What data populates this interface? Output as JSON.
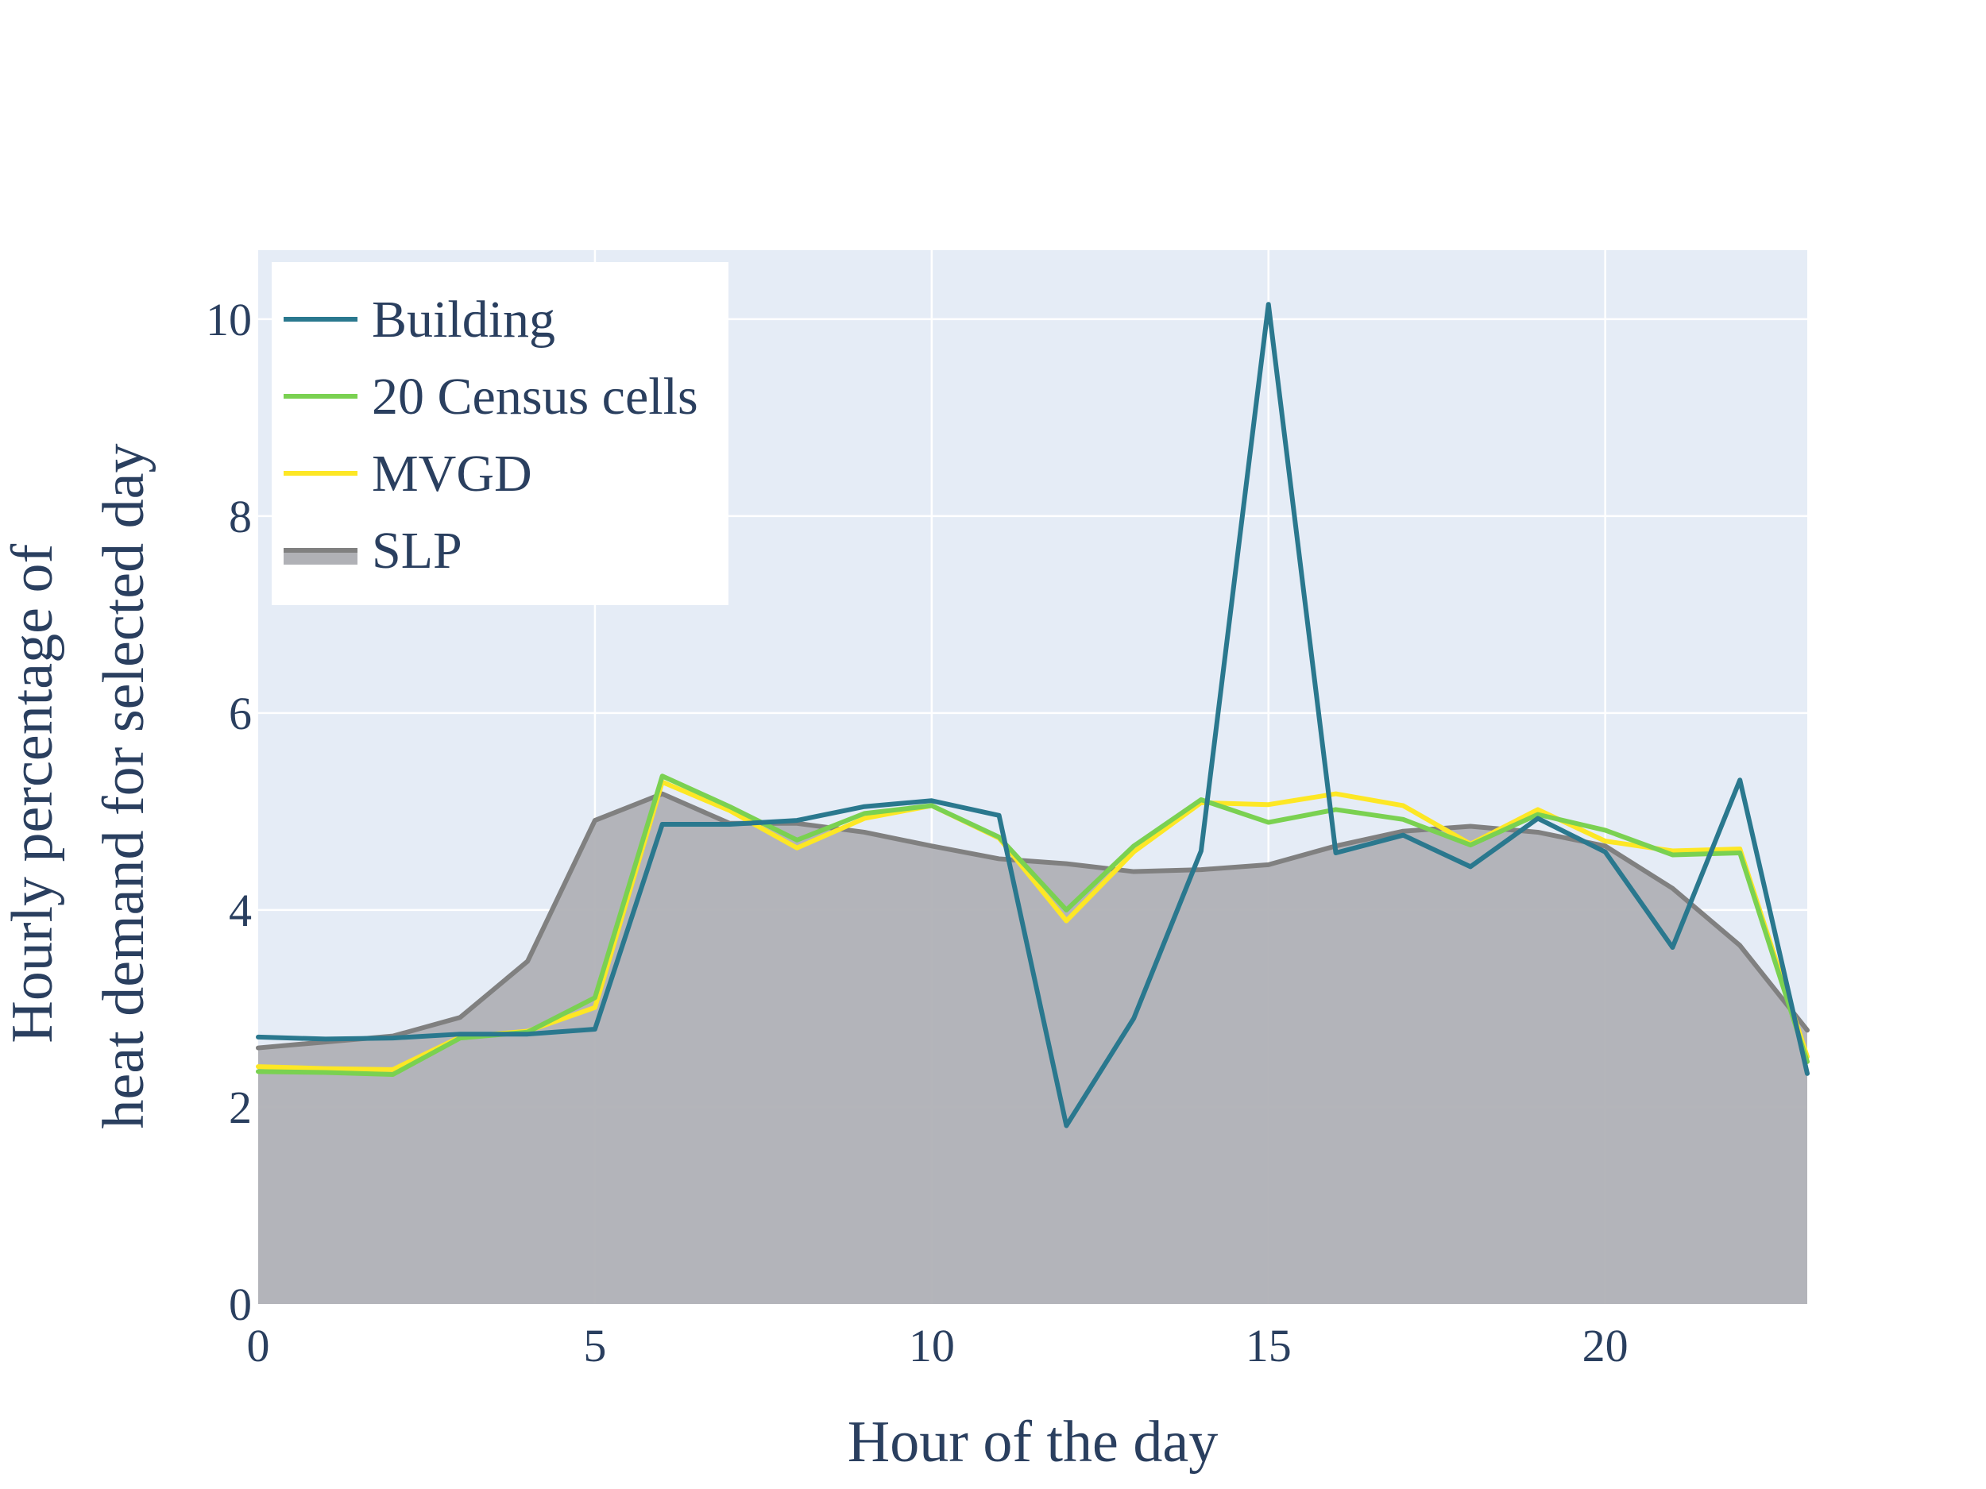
{
  "chart_data": {
    "type": "line",
    "xlabel": "Hour of the day",
    "ylabel_lines": [
      "Hourly percentage of",
      "heat demand for selected day"
    ],
    "xlim": [
      0,
      23
    ],
    "ylim": [
      0,
      10.7
    ],
    "x_ticks": [
      0,
      5,
      10,
      15,
      20
    ],
    "y_ticks": [
      0,
      2,
      4,
      6,
      8,
      10
    ],
    "grid": true,
    "legend_position": "top-left",
    "plot_background": "#e5ecf6",
    "x": [
      0,
      1,
      2,
      3,
      4,
      5,
      6,
      7,
      8,
      9,
      10,
      11,
      12,
      13,
      14,
      15,
      16,
      17,
      18,
      19,
      20,
      21,
      22,
      23
    ],
    "series": [
      {
        "name": "Building",
        "color": "#2a788e",
        "style": "line",
        "values": [
          2.71,
          2.69,
          2.7,
          2.74,
          2.74,
          2.79,
          4.87,
          4.87,
          4.91,
          5.05,
          5.11,
          4.96,
          1.81,
          2.9,
          4.6,
          10.15,
          4.58,
          4.76,
          4.44,
          4.93,
          4.59,
          3.62,
          5.32,
          2.34
        ]
      },
      {
        "name": "20 Census cells",
        "color": "#7ad151",
        "style": "line",
        "values": [
          2.36,
          2.35,
          2.33,
          2.7,
          2.76,
          3.11,
          5.36,
          5.05,
          4.71,
          4.98,
          5.06,
          4.74,
          4.0,
          4.65,
          5.12,
          4.89,
          5.02,
          4.92,
          4.66,
          4.97,
          4.81,
          4.56,
          4.58,
          2.46
        ]
      },
      {
        "name": "MVGD",
        "color": "#fde725",
        "style": "line",
        "values": [
          2.41,
          2.39,
          2.38,
          2.71,
          2.77,
          3.01,
          5.3,
          5.01,
          4.63,
          4.93,
          5.06,
          4.73,
          3.89,
          4.59,
          5.09,
          5.07,
          5.18,
          5.06,
          4.67,
          5.02,
          4.7,
          4.6,
          4.62,
          2.51
        ]
      },
      {
        "name": "SLP",
        "color": "#808080",
        "fill_color": "#b0b1b6",
        "style": "filled-area",
        "values": [
          2.6,
          2.66,
          2.72,
          2.91,
          3.48,
          4.91,
          5.18,
          4.88,
          4.88,
          4.79,
          4.65,
          4.52,
          4.47,
          4.39,
          4.41,
          4.46,
          4.65,
          4.8,
          4.85,
          4.79,
          4.65,
          4.22,
          3.64,
          2.78
        ]
      }
    ]
  }
}
